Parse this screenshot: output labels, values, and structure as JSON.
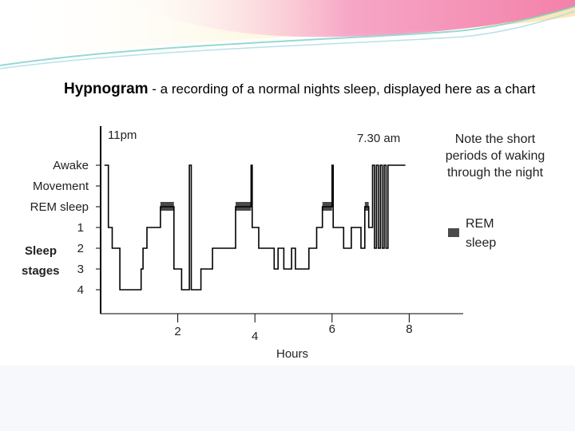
{
  "figure": {
    "title_bold": "Hypnogram",
    "title_rest": " - a recording of a normal nights sleep, displayed here as a chart",
    "note": [
      "Note the short",
      "periods of waking",
      "through the night"
    ],
    "rem_legend": [
      "REM",
      "sleep"
    ]
  },
  "chart_data": {
    "type": "line",
    "title": "Hypnogram - a recording of a normal nights sleep, displayed here as a chart",
    "xlabel": "Hours",
    "ylabel": "Sleep stages",
    "x_ticks": [
      "2",
      "4",
      "6",
      "8"
    ],
    "xlim": [
      0,
      9.4
    ],
    "time_annotations": [
      {
        "text": "11pm",
        "x": 0.2
      },
      {
        "text": "7.30 am",
        "x": 7.1
      }
    ],
    "y_categories": [
      "Awake",
      "Movement",
      "REM sleep",
      "1",
      "2",
      "3",
      "4"
    ],
    "y_levels": {
      "Awake": 0,
      "Movement": 1,
      "REM sleep": 2,
      "1": 3,
      "2": 4,
      "3": 5,
      "4": 6
    },
    "series": [
      {
        "points": [
          [
            0.1,
            0
          ],
          [
            0.2,
            0
          ],
          [
            0.2,
            3
          ],
          [
            0.3,
            3
          ],
          [
            0.3,
            4
          ],
          [
            0.5,
            4
          ],
          [
            0.5,
            6
          ],
          [
            1.05,
            6
          ],
          [
            1.05,
            5
          ],
          [
            1.1,
            5
          ],
          [
            1.1,
            4
          ],
          [
            1.2,
            4
          ],
          [
            1.2,
            3
          ],
          [
            1.55,
            3
          ],
          [
            1.55,
            2
          ],
          [
            1.9,
            2
          ],
          [
            1.9,
            5
          ],
          [
            2.1,
            5
          ],
          [
            2.1,
            6
          ],
          [
            2.3,
            6
          ],
          [
            2.3,
            0
          ],
          [
            2.35,
            0
          ],
          [
            2.35,
            6
          ],
          [
            2.6,
            6
          ],
          [
            2.6,
            5
          ],
          [
            2.9,
            5
          ],
          [
            2.9,
            4
          ],
          [
            3.5,
            4
          ],
          [
            3.5,
            2
          ],
          [
            3.9,
            2
          ],
          [
            3.9,
            0
          ],
          [
            3.93,
            0
          ],
          [
            3.93,
            3
          ],
          [
            4.1,
            3
          ],
          [
            4.1,
            4
          ],
          [
            4.5,
            4
          ],
          [
            4.5,
            5
          ],
          [
            4.6,
            5
          ],
          [
            4.6,
            4
          ],
          [
            4.75,
            4
          ],
          [
            4.75,
            5
          ],
          [
            4.95,
            5
          ],
          [
            4.95,
            4
          ],
          [
            5.05,
            4
          ],
          [
            5.05,
            5
          ],
          [
            5.4,
            5
          ],
          [
            5.4,
            4
          ],
          [
            5.6,
            4
          ],
          [
            5.6,
            3
          ],
          [
            5.75,
            3
          ],
          [
            5.75,
            2
          ],
          [
            6.0,
            2
          ],
          [
            6.0,
            0
          ],
          [
            6.03,
            0
          ],
          [
            6.03,
            3
          ],
          [
            6.3,
            3
          ],
          [
            6.3,
            4
          ],
          [
            6.5,
            4
          ],
          [
            6.5,
            3
          ],
          [
            6.75,
            3
          ],
          [
            6.75,
            4
          ],
          [
            6.85,
            4
          ],
          [
            6.85,
            2
          ],
          [
            6.95,
            2
          ],
          [
            6.95,
            3
          ],
          [
            7.05,
            3
          ],
          [
            7.05,
            0
          ],
          [
            7.1,
            0
          ],
          [
            7.1,
            4
          ],
          [
            7.15,
            4
          ],
          [
            7.15,
            0
          ],
          [
            7.2,
            0
          ],
          [
            7.2,
            4
          ],
          [
            7.25,
            4
          ],
          [
            7.25,
            0
          ],
          [
            7.3,
            0
          ],
          [
            7.3,
            4
          ],
          [
            7.35,
            4
          ],
          [
            7.35,
            0
          ],
          [
            7.4,
            0
          ],
          [
            7.4,
            4
          ],
          [
            7.45,
            4
          ],
          [
            7.45,
            0
          ],
          [
            7.9,
            0
          ]
        ]
      }
    ],
    "rem_periods": [
      [
        1.55,
        1.9
      ],
      [
        3.5,
        3.9
      ],
      [
        5.75,
        6.0
      ],
      [
        6.85,
        6.95
      ]
    ],
    "legend": [
      "REM sleep"
    ],
    "legend_position": "right",
    "grid": false
  },
  "colors": {
    "line": "#000000",
    "rem_fill": "#4a4a4a",
    "banner_pink": "#f26fa8",
    "banner_teal": "#7ccfc4",
    "footer": "#f6f8fb"
  }
}
